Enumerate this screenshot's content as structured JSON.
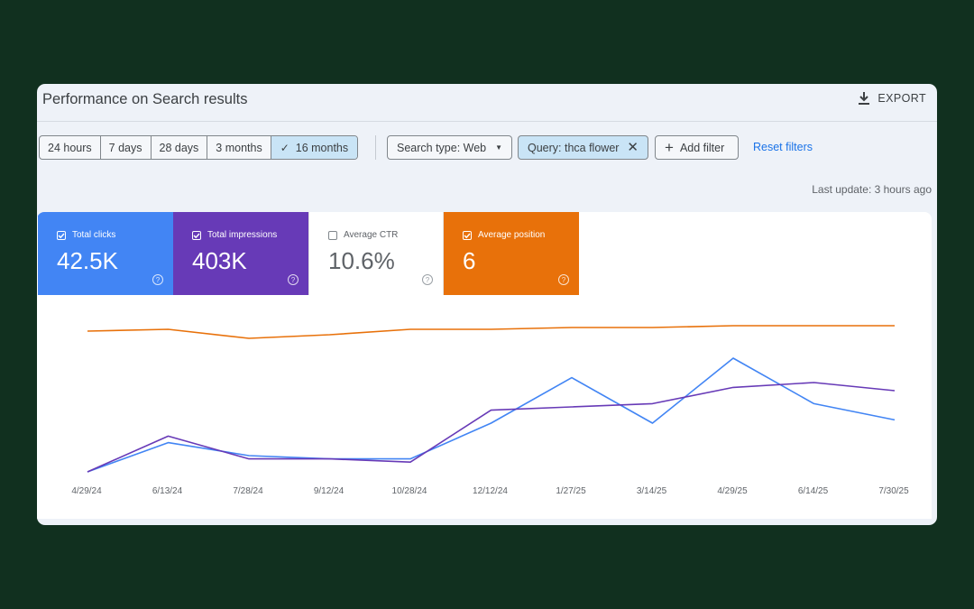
{
  "header": {
    "title": "Performance on Search results",
    "export_label": "EXPORT"
  },
  "date_ranges": [
    {
      "label": "24 hours",
      "active": false
    },
    {
      "label": "7 days",
      "active": false
    },
    {
      "label": "28 days",
      "active": false
    },
    {
      "label": "3 months",
      "active": false
    },
    {
      "label": "16 months",
      "active": true
    }
  ],
  "filters": {
    "search_type": "Search type: Web",
    "query": "Query: thca flower",
    "add_filter": "Add filter",
    "reset": "Reset filters"
  },
  "last_update": "Last update: 3 hours ago",
  "metrics": {
    "clicks": {
      "label": "Total clicks",
      "value": "42.5K",
      "checked": true,
      "color": "#4285f4"
    },
    "impressions": {
      "label": "Total impressions",
      "value": "403K",
      "checked": true,
      "color": "#673ab7"
    },
    "ctr": {
      "label": "Average CTR",
      "value": "10.6%",
      "checked": false
    },
    "position": {
      "label": "Average position",
      "value": "6",
      "checked": true,
      "color": "#e8710a"
    }
  },
  "chart_data": {
    "type": "line",
    "categories": [
      "4/29/24",
      "6/13/24",
      "7/28/24",
      "9/12/24",
      "10/28/24",
      "12/12/24",
      "1/27/25",
      "3/14/25",
      "4/29/25",
      "6/14/25",
      "7/30/25"
    ],
    "series": [
      {
        "name": "Total clicks",
        "color": "#4285f4",
        "values": [
          0,
          18,
          10,
          8,
          8,
          30,
          58,
          30,
          70,
          42,
          32
        ]
      },
      {
        "name": "Total impressions",
        "color": "#673ab7",
        "values": [
          0,
          22,
          8,
          8,
          6,
          38,
          40,
          42,
          52,
          55,
          50
        ]
      },
      {
        "name": "Average position",
        "color": "#e8710a",
        "values": [
          6,
          5,
          10,
          8,
          5,
          5,
          4,
          4,
          3,
          3,
          3
        ]
      }
    ],
    "ylim": [
      0,
      100
    ]
  }
}
